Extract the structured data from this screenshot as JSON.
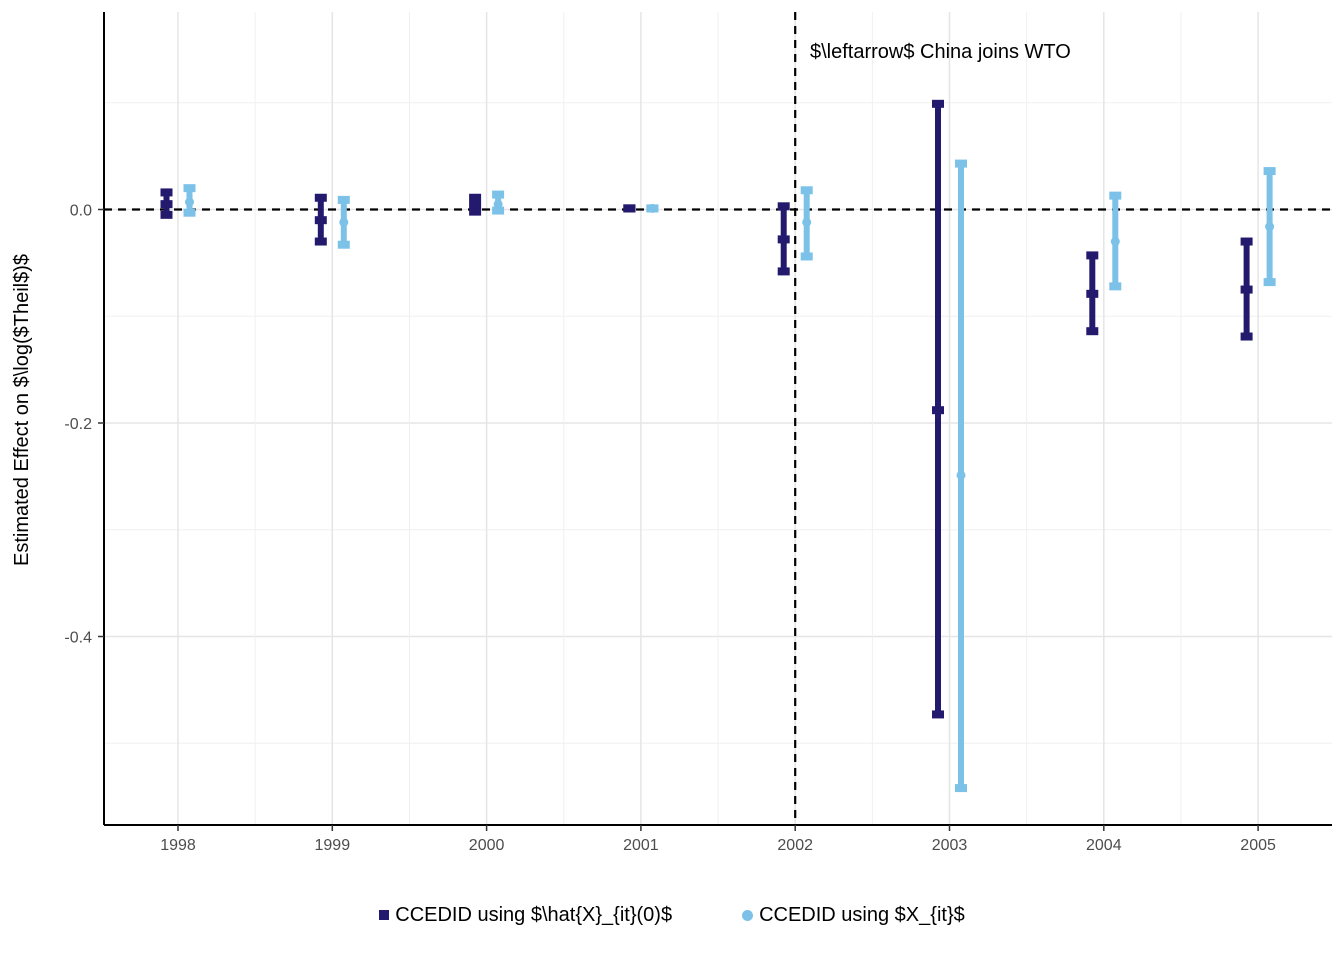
{
  "chart_data": {
    "type": "errorbar",
    "ylabel": "Estimated Effect on $\\log($Theil$)$",
    "xlabel": "",
    "categories": [
      "1998",
      "1999",
      "2000",
      "2001",
      "2002",
      "2003",
      "2004",
      "2005"
    ],
    "ylim": [
      -0.575,
      0.185
    ],
    "yticks": [
      0.0,
      -0.2,
      -0.4
    ],
    "ytick_labels": [
      "0.0",
      "-0.2",
      "-0.4"
    ],
    "reference_hline": 0.0,
    "reference_vline": "2002",
    "annotation": "$\\leftarrow$ China joins WTO",
    "grid": true,
    "legend_position": "bottom",
    "series": [
      {
        "name": "CCEDID using $\\hat{X}_{it}(0)$",
        "color": "#231a6e",
        "marker": "square",
        "estimate": [
          0.005,
          -0.01,
          0.004,
          0.001,
          -0.028,
          -0.188,
          -0.079,
          -0.075
        ],
        "lower": [
          -0.005,
          -0.03,
          -0.002,
          0.001,
          -0.058,
          -0.473,
          -0.114,
          -0.119
        ],
        "upper": [
          0.016,
          0.011,
          0.011,
          0.001,
          0.003,
          0.099,
          -0.043,
          -0.03
        ]
      },
      {
        "name": "CCEDID using $X_{it}$",
        "color": "#7cc2e8",
        "marker": "circle",
        "estimate": [
          0.007,
          -0.012,
          0.005,
          0.001,
          -0.012,
          -0.249,
          -0.03,
          -0.016
        ],
        "lower": [
          -0.003,
          -0.033,
          -0.001,
          0.001,
          -0.044,
          -0.542,
          -0.072,
          -0.068
        ],
        "upper": [
          0.02,
          0.009,
          0.014,
          0.001,
          0.018,
          0.043,
          0.013,
          0.036
        ]
      }
    ]
  }
}
